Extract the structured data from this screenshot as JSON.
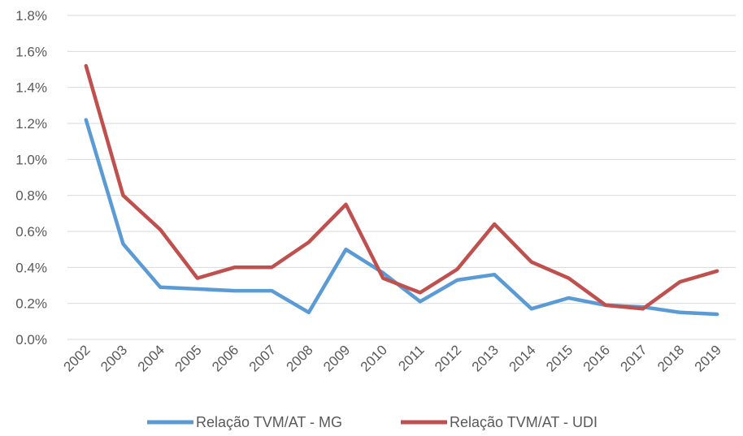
{
  "chart_data": {
    "type": "line",
    "categories": [
      "2002",
      "2003",
      "2004",
      "2005",
      "2006",
      "2007",
      "2008",
      "2009",
      "2010",
      "2011",
      "2012",
      "2013",
      "2014",
      "2015",
      "2016",
      "2017",
      "2018",
      "2019"
    ],
    "series": [
      {
        "name": "Relação TVM/AT - MG",
        "color": "#5b9bd5",
        "values": [
          1.22,
          0.53,
          0.29,
          0.28,
          0.27,
          0.27,
          0.15,
          0.5,
          0.37,
          0.21,
          0.33,
          0.36,
          0.17,
          0.23,
          0.19,
          0.18,
          0.15,
          0.14
        ]
      },
      {
        "name": "Relação TVM/AT - UDI",
        "color": "#c0504d",
        "values": [
          1.52,
          0.8,
          0.61,
          0.34,
          0.4,
          0.4,
          0.54,
          0.75,
          0.34,
          0.26,
          0.39,
          0.64,
          0.43,
          0.34,
          0.19,
          0.17,
          0.32,
          0.38
        ]
      }
    ],
    "ylim": [
      0,
      1.8
    ],
    "yticks": [
      0.0,
      0.2,
      0.4,
      0.6,
      0.8,
      1.0,
      1.2,
      1.4,
      1.6,
      1.8
    ],
    "ytick_labels": [
      "0.0%",
      "0.2%",
      "0.4%",
      "0.6%",
      "0.8%",
      "1.0%",
      "1.2%",
      "1.4%",
      "1.6%",
      "1.8%"
    ],
    "grid": true,
    "legend_position": "bottom"
  }
}
